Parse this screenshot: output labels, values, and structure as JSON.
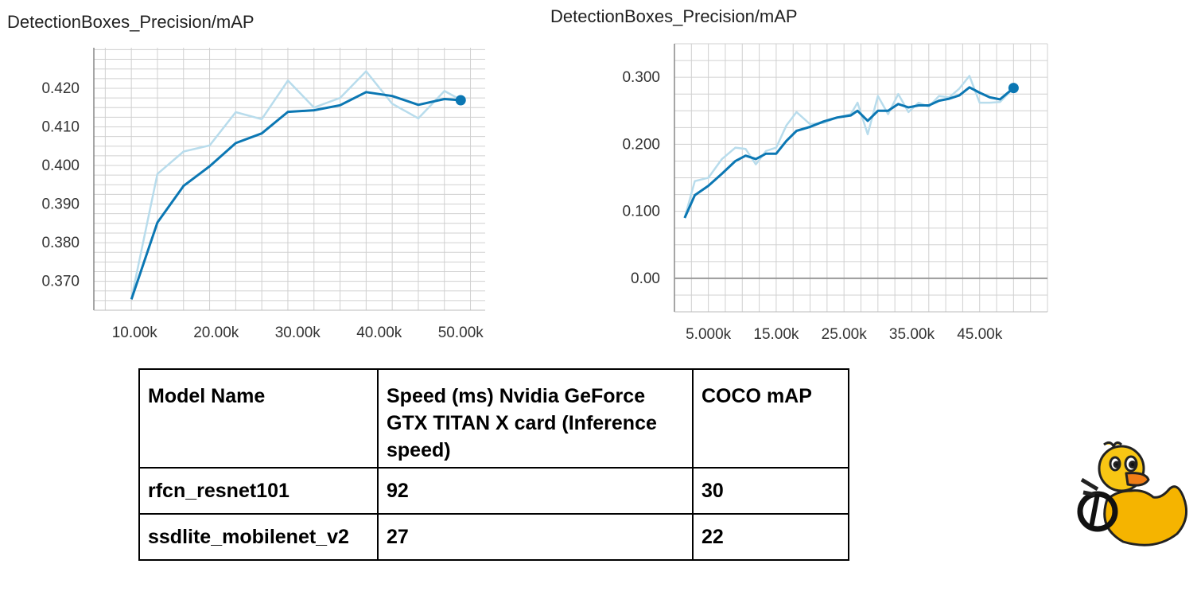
{
  "chart_data": [
    {
      "type": "line",
      "title": "DetectionBoxes_Precision/mAP",
      "xlim": [
        5000,
        53000
      ],
      "ylim": [
        0.3625,
        0.4305
      ],
      "xticks": [
        10000,
        20000,
        30000,
        40000,
        50000
      ],
      "xtick_labels": [
        "10.00k",
        "20.00k",
        "30.00k",
        "40.00k",
        "50.00k"
      ],
      "yticks": [
        0.37,
        0.38,
        0.39,
        0.4,
        0.41,
        0.42
      ],
      "ytick_labels": [
        "0.370",
        "0.380",
        "0.390",
        "0.400",
        "0.410",
        "0.420"
      ],
      "grid": true,
      "colors": {
        "smoothed": "#0b77b3",
        "raw": "#b8dcec"
      },
      "series": [
        {
          "role": "raw",
          "x": [
            9600,
            12800,
            16000,
            19200,
            22400,
            25600,
            28800,
            32000,
            35200,
            38400,
            41600,
            44800,
            48000,
            50000
          ],
          "y": [
            0.3655,
            0.3978,
            0.4036,
            0.4052,
            0.4138,
            0.412,
            0.422,
            0.415,
            0.4175,
            0.4244,
            0.416,
            0.4122,
            0.4193,
            0.417
          ]
        },
        {
          "role": "smoothed",
          "x": [
            9600,
            12800,
            16000,
            19200,
            22400,
            25600,
            28800,
            32000,
            35200,
            38400,
            41600,
            44800,
            48000,
            50000
          ],
          "y": [
            0.3653,
            0.3852,
            0.3947,
            0.3998,
            0.4058,
            0.4083,
            0.4139,
            0.4143,
            0.4156,
            0.419,
            0.418,
            0.4157,
            0.4172,
            0.4169
          ]
        }
      ]
    },
    {
      "type": "line",
      "title": "DetectionBoxes_Precision/mAP",
      "xlim": [
        0,
        55000
      ],
      "ylim": [
        -0.05,
        0.35
      ],
      "xticks": [
        5000,
        15000,
        25000,
        35000,
        45000
      ],
      "xtick_labels": [
        "5.000k",
        "15.00k",
        "25.00k",
        "35.00k",
        "45.00k"
      ],
      "yticks": [
        0.0,
        0.1,
        0.2,
        0.3
      ],
      "ytick_labels": [
        "0.00",
        "0.100",
        "0.200",
        "0.300"
      ],
      "grid": true,
      "colors": {
        "smoothed": "#0b77b3",
        "raw": "#b8dcec"
      },
      "series": [
        {
          "role": "raw",
          "x": [
            1500,
            3000,
            5000,
            7000,
            9000,
            10500,
            12000,
            13500,
            15000,
            16500,
            18000,
            20000,
            22000,
            24000,
            26000,
            27000,
            28500,
            30000,
            31500,
            33000,
            34500,
            36000,
            37500,
            39000,
            40500,
            42000,
            43500,
            45000,
            46500,
            48000,
            50000
          ],
          "y": [
            0.09,
            0.145,
            0.15,
            0.178,
            0.195,
            0.193,
            0.17,
            0.19,
            0.195,
            0.228,
            0.248,
            0.23,
            0.232,
            0.24,
            0.245,
            0.262,
            0.215,
            0.272,
            0.245,
            0.275,
            0.248,
            0.262,
            0.256,
            0.272,
            0.27,
            0.283,
            0.302,
            0.262,
            0.262,
            0.263,
            0.284
          ]
        },
        {
          "role": "smoothed",
          "x": [
            1500,
            3000,
            5000,
            7000,
            9000,
            10500,
            12000,
            13500,
            15000,
            16500,
            18000,
            20000,
            22000,
            24000,
            26000,
            27000,
            28500,
            30000,
            31500,
            33000,
            34500,
            36000,
            37500,
            39000,
            40500,
            42000,
            43500,
            45000,
            46500,
            48000,
            50000
          ],
          "y": [
            0.09,
            0.124,
            0.138,
            0.156,
            0.175,
            0.183,
            0.178,
            0.186,
            0.186,
            0.205,
            0.22,
            0.226,
            0.234,
            0.24,
            0.243,
            0.25,
            0.235,
            0.25,
            0.25,
            0.26,
            0.255,
            0.258,
            0.258,
            0.265,
            0.268,
            0.273,
            0.285,
            0.277,
            0.27,
            0.267,
            0.284
          ]
        }
      ]
    }
  ],
  "table": {
    "headers": [
      "Model Name",
      "Speed (ms)  Nvidia GeForce GTX TITAN X card (Inference speed)",
      "COCO mAP"
    ],
    "rows": [
      [
        "rfcn_resnet101",
        "92",
        "30"
      ],
      [
        "ssdlite_mobilenet_v2",
        "27",
        "22"
      ]
    ]
  }
}
